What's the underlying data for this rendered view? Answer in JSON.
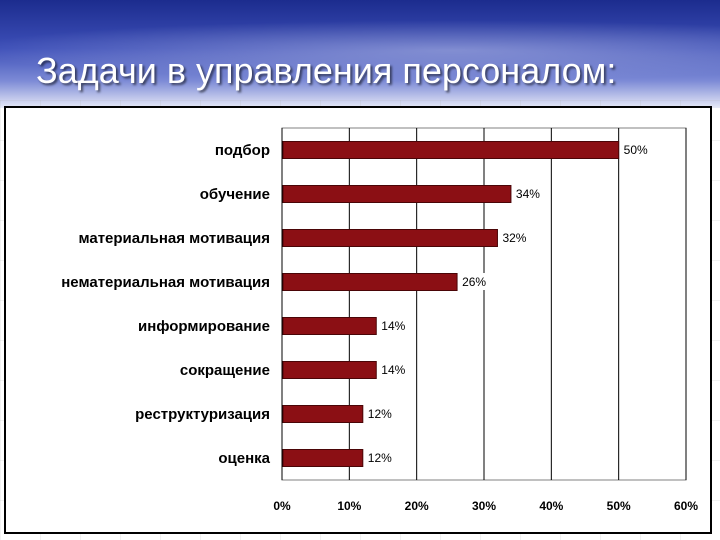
{
  "slide": {
    "title": "Задачи в управления персоналом:"
  },
  "colors": {
    "bar_fill": "#8b0f14",
    "bar_edge": "#4a0507",
    "grid": "#000000",
    "plot_bg": "#ffffff"
  },
  "chart_data": {
    "type": "bar",
    "orientation": "horizontal",
    "title": "",
    "xlabel": "",
    "ylabel": "",
    "categories": [
      "подбор",
      "обучение",
      "материальная мотивация",
      "нематериальная мотивация",
      "информирование",
      "сокращение",
      "реструктуризация",
      "оценка"
    ],
    "values": [
      50,
      34,
      32,
      26,
      14,
      14,
      12,
      12
    ],
    "value_labels": [
      "50%",
      "34%",
      "32%",
      "26%",
      "14%",
      "14%",
      "12%",
      "12%"
    ],
    "xlim": [
      0,
      60
    ],
    "x_ticks": [
      0,
      10,
      20,
      30,
      40,
      50,
      60
    ],
    "x_tick_labels": [
      "0%",
      "10%",
      "20%",
      "30%",
      "40%",
      "50%",
      "60%"
    ],
    "grid": true,
    "legend": "none"
  }
}
